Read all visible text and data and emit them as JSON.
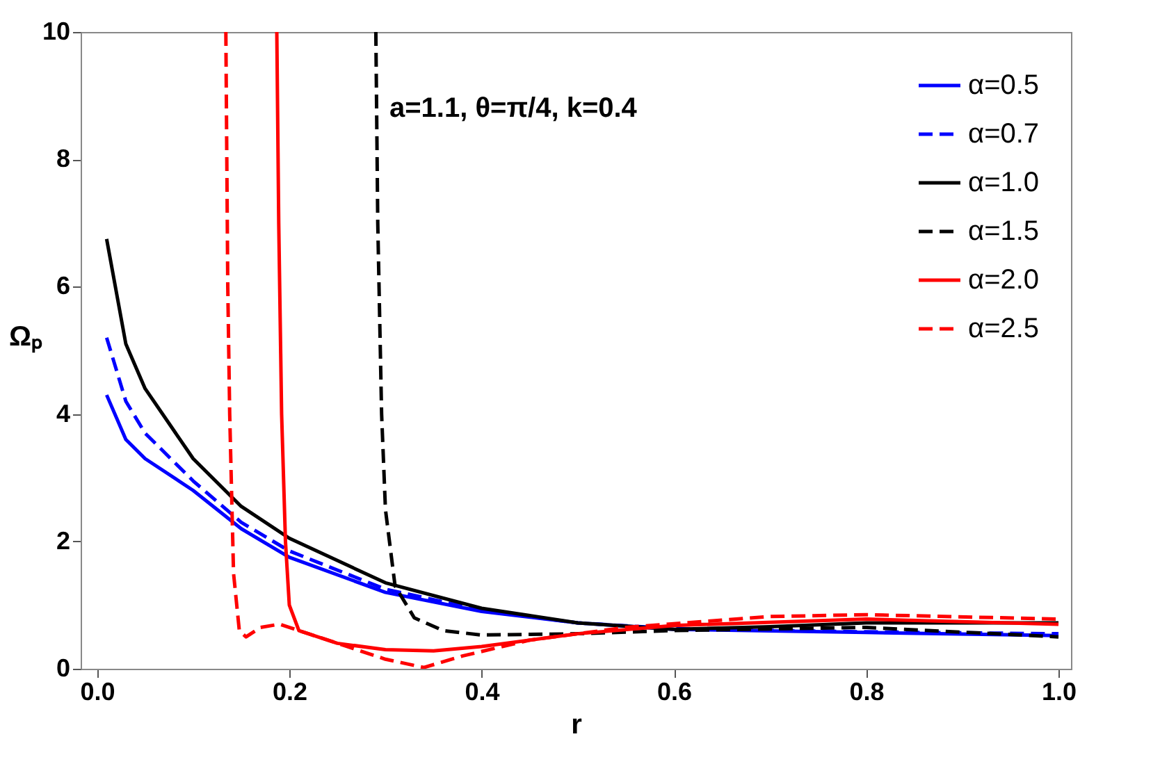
{
  "chart_data": {
    "type": "line",
    "xlabel": "r",
    "ylabel": "Ωₚ",
    "annotations": [
      "a=1.1, θ=π/4, k=0.4"
    ],
    "xlim": [
      -0.017,
      1.013
    ],
    "ylim": [
      0,
      10
    ],
    "xticks": [
      {
        "value": 0,
        "label": "0.0"
      },
      0.2,
      0.4,
      0.6,
      0.8,
      {
        "value": 1,
        "label": "1.0"
      }
    ],
    "yticks": [
      0,
      2,
      4,
      6,
      8,
      10
    ],
    "grid": false,
    "legend": "top right",
    "marker": "none",
    "series": [
      {
        "name": "α=0.5",
        "color": "#0000ff",
        "line_style": "solid",
        "x": [
          0.01,
          0.03,
          0.05,
          0.1,
          0.15,
          0.2,
          0.3,
          0.4,
          0.5,
          0.6,
          0.8,
          1.0
        ],
        "values": [
          4.3,
          3.6,
          3.3,
          2.8,
          2.2,
          1.75,
          1.2,
          0.9,
          0.72,
          0.62,
          0.57,
          0.52
        ]
      },
      {
        "name": "α=0.7",
        "color": "#0000ff",
        "line_style": "dashed",
        "x": [
          0.01,
          0.03,
          0.05,
          0.1,
          0.15,
          0.2,
          0.3,
          0.4,
          0.5,
          0.6,
          0.8,
          1.0
        ],
        "values": [
          5.2,
          4.2,
          3.7,
          2.95,
          2.3,
          1.85,
          1.25,
          0.92,
          0.72,
          0.63,
          0.58,
          0.55
        ]
      },
      {
        "name": "α=1.0",
        "color": "#000000",
        "line_style": "solid",
        "x": [
          0.01,
          0.03,
          0.05,
          0.1,
          0.15,
          0.2,
          0.3,
          0.4,
          0.5,
          0.6,
          0.7,
          0.8,
          1.0
        ],
        "values": [
          6.75,
          5.1,
          4.4,
          3.3,
          2.55,
          2.05,
          1.35,
          0.95,
          0.72,
          0.62,
          0.66,
          0.72,
          0.72
        ]
      },
      {
        "name": "α=1.5",
        "color": "#000000",
        "line_style": "dashed",
        "x": [
          0.29,
          0.292,
          0.296,
          0.3,
          0.31,
          0.33,
          0.36,
          0.4,
          0.5,
          0.6,
          0.8,
          1.0
        ],
        "values": [
          10,
          7,
          4,
          2.5,
          1.3,
          0.8,
          0.6,
          0.53,
          0.55,
          0.6,
          0.65,
          0.5
        ]
      },
      {
        "name": "α=2.0",
        "color": "#ff0000",
        "line_style": "solid",
        "x": [
          0.187,
          0.189,
          0.192,
          0.196,
          0.2,
          0.21,
          0.25,
          0.3,
          0.35,
          0.4,
          0.5,
          0.6,
          0.8,
          1.0
        ],
        "values": [
          10,
          7,
          4,
          2,
          1.0,
          0.6,
          0.4,
          0.3,
          0.28,
          0.35,
          0.55,
          0.68,
          0.78,
          0.7
        ]
      },
      {
        "name": "α=2.5",
        "color": "#ff0000",
        "line_style": "dashed",
        "x": [
          0.134,
          0.136,
          0.138,
          0.142,
          0.148,
          0.155,
          0.17,
          0.19,
          0.22,
          0.26,
          0.3,
          0.34,
          0.38,
          0.45,
          0.55,
          0.7,
          0.8,
          1.0
        ],
        "values": [
          10,
          6,
          4,
          1.5,
          0.6,
          0.5,
          0.65,
          0.7,
          0.55,
          0.35,
          0.15,
          0.02,
          0.2,
          0.45,
          0.65,
          0.82,
          0.85,
          0.78
        ]
      }
    ]
  }
}
